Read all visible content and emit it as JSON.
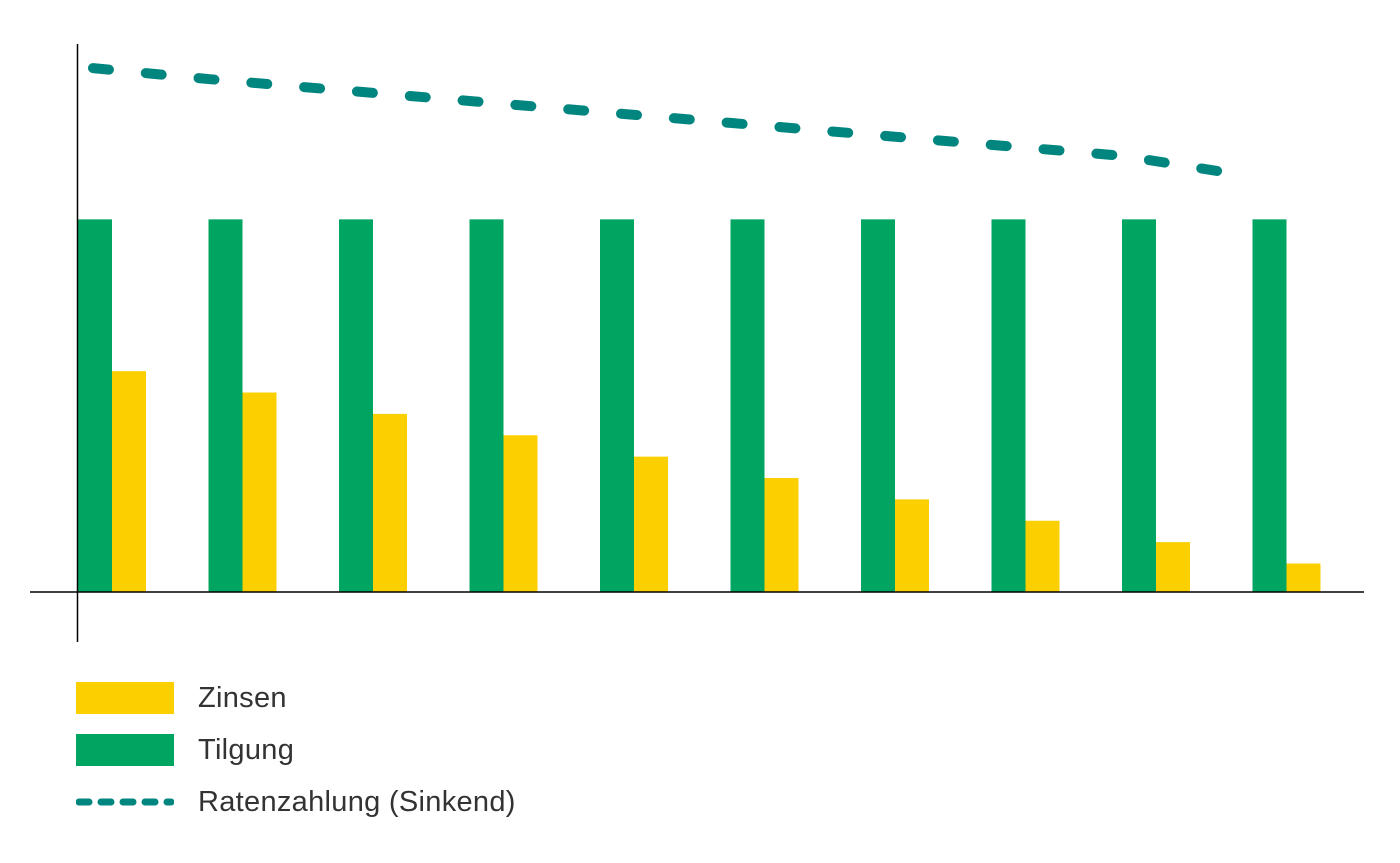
{
  "colors": {
    "zinsen": "#fccf00",
    "tilgung": "#00a562",
    "rate": "#00857f",
    "axis": "#000000"
  },
  "legend": {
    "zinsen": "Zinsen",
    "tilgung": "Tilgung",
    "rate": "Ratenzahlung (Sinkend)"
  },
  "chart_data": {
    "type": "bar",
    "title": "",
    "xlabel": "",
    "ylabel": "",
    "ylim": [
      0,
      100
    ],
    "categories": [
      "",
      "",
      "",
      "",
      "",
      "",
      "",
      "",
      "",
      ""
    ],
    "series": [
      {
        "name": "Tilgung",
        "type": "bar",
        "values": [
          68,
          68,
          68,
          68,
          68,
          68,
          68,
          68,
          68,
          68
        ]
      },
      {
        "name": "Zinsen",
        "type": "bar",
        "values": [
          40.3,
          36.4,
          32.5,
          28.6,
          24.7,
          20.8,
          16.9,
          13,
          9.1,
          5.2
        ]
      },
      {
        "name": "Ratenzahlung (Sinkend)",
        "type": "line",
        "style": "dashed",
        "values": [
          95.6,
          93.6,
          91.6,
          89.6,
          87.6,
          85.6,
          83.6,
          81.6,
          79.6,
          76.2
        ]
      }
    ],
    "grid": false,
    "legend_position": "bottom-left"
  }
}
